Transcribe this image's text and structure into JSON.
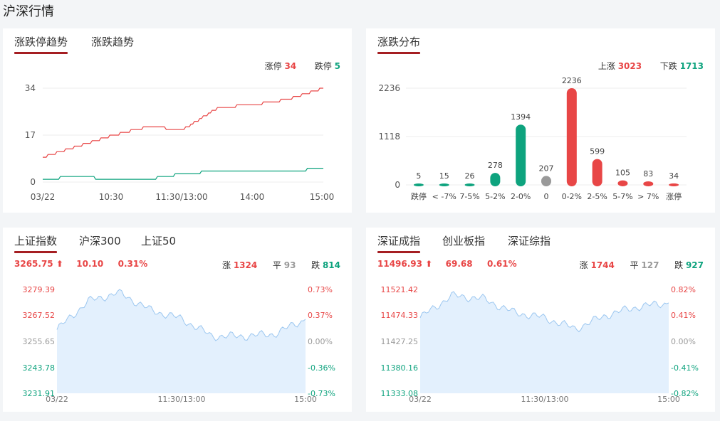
{
  "page": {
    "title": "沪深行情"
  },
  "trend": {
    "tabs": [
      "涨跌停趋势",
      "涨跌趋势"
    ],
    "limit_up_label": "涨停",
    "limit_up_value": "34",
    "limit_down_label": "跌停",
    "limit_down_value": "5",
    "y_ticks": [
      "34",
      "17",
      "0"
    ],
    "x_ticks": [
      "03/22",
      "10:30",
      "11:30/13:00",
      "14:00",
      "15:00"
    ],
    "chart_data": {
      "type": "line",
      "x": [
        "09:30",
        "10:00",
        "10:30",
        "11:00",
        "11:30/13:00",
        "13:30",
        "14:00",
        "14:30",
        "15:00"
      ],
      "ylim": [
        0,
        34
      ],
      "series": [
        {
          "name": "涨停",
          "color": "#e84646",
          "values": [
            9,
            13,
            17,
            20,
            19,
            27,
            28,
            30,
            34
          ]
        },
        {
          "name": "跌停",
          "color": "#0ea37e",
          "values": [
            1,
            2,
            1,
            1,
            3,
            4,
            4,
            4,
            5
          ]
        }
      ]
    }
  },
  "distribution": {
    "title": "涨跌分布",
    "up_label": "上涨",
    "up_value": "3023",
    "down_label": "下跌",
    "down_value": "1713",
    "y_ticks": [
      "2236",
      "1118",
      "0"
    ],
    "chart_data": {
      "type": "bar",
      "ylim": [
        0,
        2236
      ],
      "categories": [
        "跌停",
        "< -7%",
        "7-5%",
        "5-2%",
        "2-0%",
        "0",
        "0-2%",
        "2-5%",
        "5-7%",
        "> 7%",
        "涨停"
      ],
      "values": [
        5,
        15,
        26,
        278,
        1394,
        207,
        2236,
        599,
        105,
        83,
        34
      ],
      "colors": [
        "#0ea37e",
        "#0ea37e",
        "#0ea37e",
        "#0ea37e",
        "#0ea37e",
        "#999999",
        "#e84646",
        "#e84646",
        "#e84646",
        "#e84646",
        "#e84646"
      ]
    }
  },
  "index_sh": {
    "tabs": [
      "上证指数",
      "沪深300",
      "上证50"
    ],
    "price": "3265.75",
    "change": "10.10",
    "pct": "0.31%",
    "up_label": "涨",
    "up_count": "1324",
    "flat_label": "平",
    "flat_count": "93",
    "down_label": "跌",
    "down_count": "814",
    "left_ticks": [
      "3279.39",
      "3267.52",
      "3255.65",
      "3243.78",
      "3231.91"
    ],
    "right_ticks": [
      "0.73%",
      "0.37%",
      "0.00%",
      "-0.36%",
      "-0.73%"
    ],
    "x_ticks": [
      "03/22",
      "11:30/13:00",
      "15:00"
    ],
    "chart_data": {
      "type": "area",
      "ylim": [
        3231.91,
        3279.39
      ],
      "x": [
        "09:30",
        "10:00",
        "10:30",
        "11:00",
        "11:30/13:00",
        "13:30",
        "14:00",
        "14:30",
        "15:00"
      ],
      "values": [
        3261,
        3274,
        3278,
        3270,
        3266,
        3258,
        3258,
        3259,
        3265.75
      ]
    }
  },
  "index_sz": {
    "tabs": [
      "深证成指",
      "创业板指",
      "深证综指"
    ],
    "price": "11496.93",
    "change": "69.68",
    "pct": "0.61%",
    "up_label": "涨",
    "up_count": "1744",
    "flat_label": "平",
    "flat_count": "127",
    "down_label": "跌",
    "down_count": "927",
    "left_ticks": [
      "11521.42",
      "11474.33",
      "11427.25",
      "11380.16",
      "11333.08"
    ],
    "right_ticks": [
      "0.82%",
      "0.41%",
      "0.00%",
      "-0.41%",
      "-0.82%"
    ],
    "x_ticks": [
      "03/22",
      "11:30/13:00",
      "15:00"
    ],
    "chart_data": {
      "type": "area",
      "ylim": [
        11333.08,
        11521.42
      ],
      "x": [
        "09:30",
        "10:00",
        "10:30",
        "11:00",
        "11:30/13:00",
        "13:30",
        "14:00",
        "14:30",
        "15:00"
      ],
      "values": [
        11470,
        11510,
        11505,
        11480,
        11470,
        11450,
        11475,
        11490,
        11496.93
      ]
    }
  }
}
